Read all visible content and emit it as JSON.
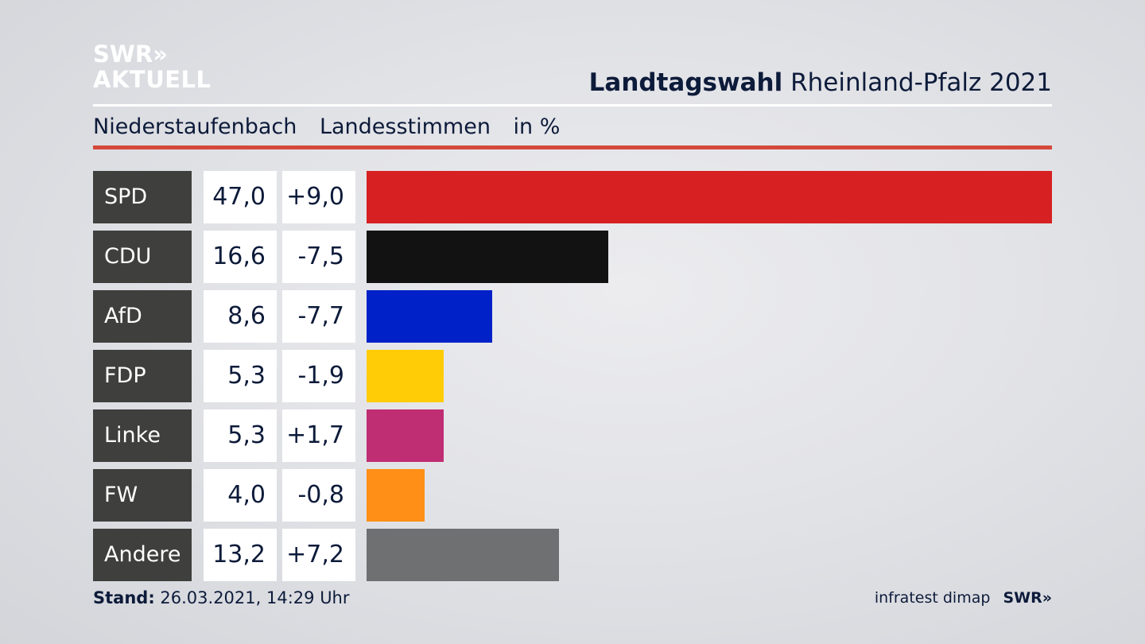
{
  "brand": {
    "line1": "SWR»",
    "line2": "AKTUELL"
  },
  "header": {
    "title_bold": "Landtagswahl",
    "title_regular": "Rheinland-Pfalz 2021"
  },
  "subheader": {
    "place": "Niederstaufenbach",
    "vote_type": "Landesstimmen",
    "unit": "in %"
  },
  "chart_data": {
    "type": "bar",
    "orientation": "horizontal",
    "categories": [
      "SPD",
      "CDU",
      "AfD",
      "FDP",
      "Linke",
      "FW",
      "Andere"
    ],
    "series": [
      {
        "name": "",
        "values": [
          47.0,
          16.6,
          8.6,
          5.3,
          5.3,
          4.0,
          13.2
        ]
      }
    ],
    "value_labels": [
      "47,0",
      "16,6",
      "8,6",
      "5,3",
      "5,3",
      "4,0",
      "13,2"
    ],
    "change_labels": [
      "+9,0",
      "-7,5",
      "-7,7",
      "-1,9",
      "+1,7",
      "-0,8",
      "+7,2"
    ],
    "colors": [
      "#d62021",
      "#121212",
      "#0021c8",
      "#ffcc05",
      "#bf2e73",
      "#ff8f16",
      "#6f7072"
    ],
    "xlim": [
      0,
      47.0
    ],
    "grid": false
  },
  "footer": {
    "stand_label": "Stand:",
    "stand_value": "26.03.2021, 14:29 Uhr",
    "source": "infratest dimap",
    "source_brand": "SWR»"
  }
}
